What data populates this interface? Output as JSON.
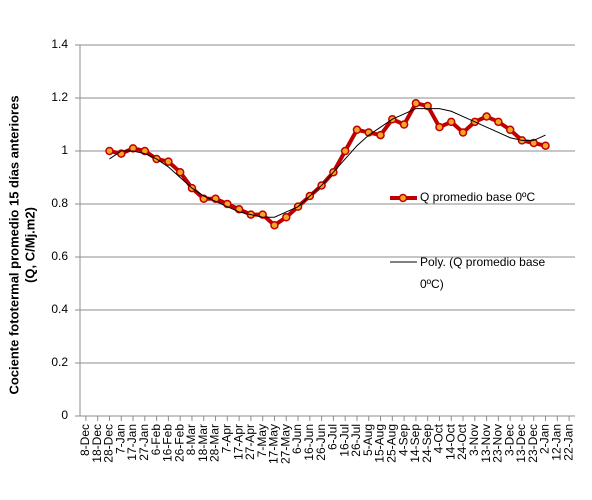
{
  "chart_data": {
    "type": "line",
    "y_label_lines": [
      "Cociente fototermal promedio 15 días anteriores",
      "(Q, C/Mj.m2)"
    ],
    "categories": [
      "8-Dec",
      "18-Dec",
      "28-Dec",
      "7-Jan",
      "17-Jan",
      "27-Jan",
      "6-Feb",
      "16-Feb",
      "26-Feb",
      "8-Mar",
      "18-Mar",
      "28-Mar",
      "7-Apr",
      "17-Apr",
      "27-Apr",
      "7-May",
      "17-May",
      "27-May",
      "6-Jun",
      "16-Jun",
      "26-Jun",
      "6-Jul",
      "16-Jul",
      "26-Jul",
      "5-Aug",
      "15-Aug",
      "25-Aug",
      "4-Sep",
      "14-Sep",
      "24-Sep",
      "4-Oct",
      "14-Oct",
      "24-Oct",
      "3-Nov",
      "13-Nov",
      "23-Nov",
      "3-Dec",
      "13-Dec",
      "23-Dec",
      "2-Jan",
      "12-Jan",
      "22-Jan"
    ],
    "series": [
      {
        "name": "Q promedio base 0ºC",
        "color": "#c00000",
        "marker_color": "#f5a623",
        "values": [
          null,
          null,
          1.0,
          0.99,
          1.01,
          1.0,
          0.97,
          0.96,
          0.92,
          0.86,
          0.82,
          0.82,
          0.8,
          0.78,
          0.76,
          0.76,
          0.72,
          0.75,
          0.79,
          0.83,
          0.87,
          0.92,
          1.0,
          1.08,
          1.07,
          1.06,
          1.12,
          1.1,
          1.18,
          1.17,
          1.09,
          1.11,
          1.07,
          1.11,
          1.13,
          1.11,
          1.08,
          1.04,
          1.03,
          1.02,
          null,
          null
        ]
      },
      {
        "name": "Poly. (Q promedio base 0ºC)",
        "color": "#000000",
        "values": [
          null,
          null,
          0.97,
          1.0,
          1.0,
          0.99,
          0.97,
          0.94,
          0.9,
          0.86,
          0.83,
          0.81,
          0.79,
          0.77,
          0.76,
          0.75,
          0.75,
          0.77,
          0.79,
          0.83,
          0.87,
          0.92,
          0.97,
          1.02,
          1.06,
          1.09,
          1.12,
          1.14,
          1.16,
          1.16,
          1.16,
          1.15,
          1.13,
          1.11,
          1.09,
          1.07,
          1.05,
          1.04,
          1.04,
          1.06,
          null,
          null
        ]
      }
    ],
    "ylim": [
      0,
      1.4
    ],
    "yticks": [
      0,
      0.2,
      0.4,
      0.6,
      0.8,
      1,
      1.2,
      1.4
    ],
    "grid": true
  }
}
